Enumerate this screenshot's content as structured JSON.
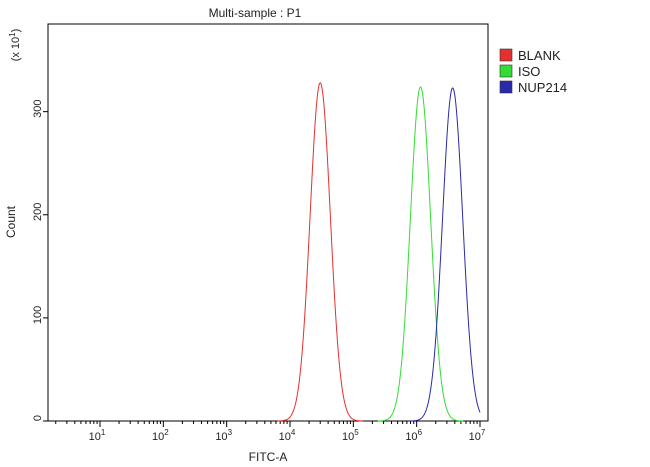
{
  "chart_data": {
    "type": "line",
    "title": "Multi-sample : P1",
    "xlabel": "FITC-A",
    "ylabel": "Count",
    "y_multiplier": "(x 10",
    "y_multiplier_exp": "1",
    "y_multiplier_close": ")",
    "x_scale": "log",
    "xlim": [
      10,
      10000000
    ],
    "ylim": [
      0,
      38.5
    ],
    "x_ticks": [
      {
        "base": "10",
        "exp": "1",
        "value": 10
      },
      {
        "base": "10",
        "exp": "2",
        "value": 100
      },
      {
        "base": "10",
        "exp": "3",
        "value": 1000
      },
      {
        "base": "10",
        "exp": "4",
        "value": 10000
      },
      {
        "base": "10",
        "exp": "5",
        "value": 100000
      },
      {
        "base": "10",
        "exp": "6",
        "value": 1000000
      },
      {
        "base": "10",
        "exp": "7",
        "value": 10000000
      }
    ],
    "y_ticks": [
      {
        "label": "0",
        "value": 0
      },
      {
        "label": "100",
        "value": 10
      },
      {
        "label": "200",
        "value": 20
      },
      {
        "label": "300",
        "value": 30
      }
    ],
    "legend_position": "top-right",
    "series": [
      {
        "name": "BLANK",
        "color": "#e53030",
        "peak_x": 30000,
        "peak_y": 32.8,
        "width_decades": 0.16
      },
      {
        "name": "ISO",
        "color": "#33dd33",
        "peak_x": 1150000,
        "peak_y": 32.4,
        "width_decades": 0.16
      },
      {
        "name": "NUP214",
        "color": "#2a2aaa",
        "peak_x": 3700000,
        "peak_y": 32.3,
        "width_decades": 0.16
      }
    ]
  }
}
